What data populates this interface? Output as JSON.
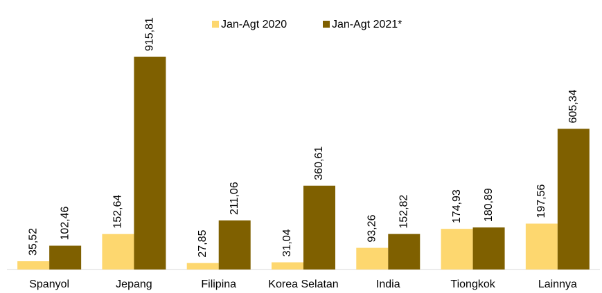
{
  "chart_data": {
    "type": "bar",
    "categories": [
      "Spanyol",
      "Jepang",
      "Filipina",
      "Korea Selatan",
      "India",
      "Tiongkok",
      "Lainnya"
    ],
    "series": [
      {
        "name": "Jan-Agt 2020",
        "color": "#FDD76F",
        "values": [
          35.52,
          152.64,
          27.85,
          31.04,
          93.26,
          174.93,
          197.56
        ],
        "value_labels": [
          "35,52",
          "152,64",
          "27,85",
          "31,04",
          "93,26",
          "174,93",
          "197,56"
        ]
      },
      {
        "name": "Jan-Agt 2021*",
        "color": "#7F6000",
        "values": [
          102.46,
          915.81,
          211.06,
          360.61,
          152.82,
          180.89,
          605.34
        ],
        "value_labels": [
          "102,46",
          "915,81",
          "211,06",
          "360,61",
          "152,82",
          "180,89",
          "605,34"
        ]
      }
    ],
    "legend": "top"
  }
}
